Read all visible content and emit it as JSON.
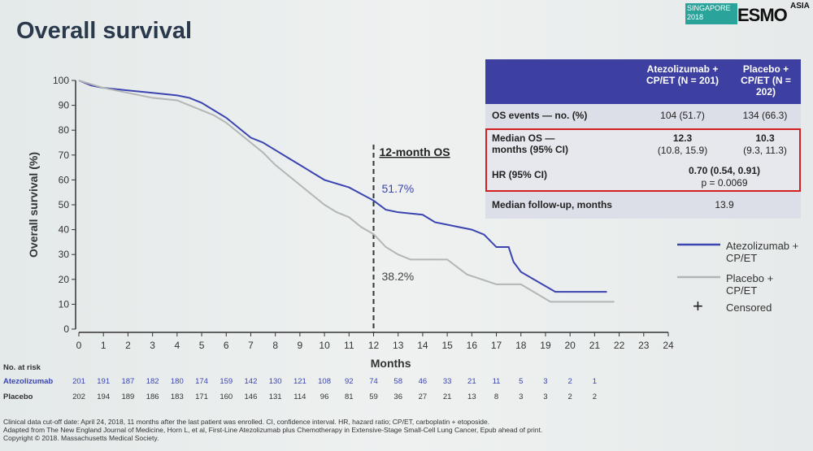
{
  "slide": {
    "title": "Overall survival",
    "logo": {
      "event": "SINGAPORE 2018",
      "brand": "ESMO",
      "region": "ASIA"
    },
    "footnotes": [
      "Clinical data cut-off date: April 24, 2018, 11 months after the last patient was enrolled. CI, confidence interval. HR, hazard ratio; CP/ET, carboplatin + etoposide.",
      "Adapted from The New England Journal of Medicine, Horn L, et al, First-Line Atezolizumab plus Chemotherapy in Extensive-Stage Small-Cell Lung Cancer, Epub ahead of print.",
      "Copyright © 2018. Massachusetts Medical Society."
    ],
    "summary_table": {
      "header": [
        "Atezolizumab + CP/ET (N = 201)",
        "Placebo + CP/ET (N = 202)"
      ],
      "rows": [
        [
          "OS events — no. (%)",
          "104 (51.7)",
          "134 (66.3)"
        ],
        [
          "Median OS — months (95% CI)",
          "12.3",
          "(10.8, 15.9)",
          "10.3",
          "(9.3, 11.3)"
        ],
        [
          "HR (95% CI)",
          "0.70 (0.54, 0.91)",
          "p = 0.0069"
        ],
        [
          "Median follow-up, months",
          "13.9"
        ]
      ]
    }
  },
  "chart_data": {
    "type": "line",
    "y_label": "Overall survival (%)",
    "x_label": "Months",
    "xlim": [
      0,
      24
    ],
    "ylim": [
      0,
      100
    ],
    "xticks": [
      0,
      1,
      2,
      3,
      4,
      5,
      6,
      7,
      8,
      9,
      10,
      11,
      12,
      13,
      14,
      15,
      16,
      17,
      18,
      19,
      20,
      21,
      22,
      23,
      24
    ],
    "yticks": [
      0,
      10,
      20,
      30,
      40,
      50,
      60,
      70,
      80,
      90,
      100
    ],
    "marker_x": 12,
    "marker_label": "12-month OS",
    "censored_label": "Censored",
    "series": [
      {
        "name": "Atezolizumab + CP/ET",
        "color": "#3b44b0",
        "x": [
          0,
          0.5,
          1,
          2,
          3,
          4,
          4.5,
          5,
          5.5,
          6,
          6.5,
          7,
          7.5,
          8,
          8.5,
          9,
          9.5,
          10,
          11,
          12,
          12.5,
          13,
          14,
          14.5,
          15,
          16,
          16.5,
          17,
          17.5,
          17.7,
          18,
          19.4,
          21.5
        ],
        "values": [
          100,
          98,
          97,
          96,
          95,
          94,
          93,
          91,
          88,
          85,
          81,
          77,
          75,
          72,
          69,
          66,
          63,
          60,
          57,
          51.7,
          48,
          47,
          46,
          43,
          42,
          40,
          38,
          33,
          33,
          27,
          23,
          15,
          15
        ],
        "annotation": "51.7%",
        "annotation_value": 51.7
      },
      {
        "name": "Placebo + CP/ET",
        "color": "#b4b6b6",
        "x": [
          0,
          1,
          2,
          3,
          4,
          4.5,
          5,
          5.5,
          6,
          6.5,
          7,
          7.5,
          8,
          8.5,
          9,
          9.5,
          10,
          10.5,
          11,
          11.5,
          12,
          12.5,
          13,
          13.5,
          15,
          15.8,
          17,
          18,
          19.2,
          21.8
        ],
        "values": [
          100,
          97,
          95,
          93,
          92,
          90,
          88,
          86,
          83,
          79,
          75,
          71,
          66,
          62,
          58,
          54,
          50,
          47,
          45,
          41,
          38.2,
          33,
          30,
          28,
          28,
          22,
          18,
          18,
          11,
          11
        ],
        "annotation": "38.2%",
        "annotation_value": 38.2
      }
    ],
    "risk_table": {
      "title": "No. at risk",
      "rows": [
        {
          "name": "Atezolizumab",
          "values": [
            201,
            191,
            187,
            182,
            180,
            174,
            159,
            142,
            130,
            121,
            108,
            92,
            74,
            58,
            46,
            33,
            21,
            11,
            5,
            3,
            2,
            1
          ]
        },
        {
          "name": "Placebo",
          "values": [
            202,
            194,
            189,
            186,
            183,
            171,
            160,
            146,
            131,
            114,
            96,
            81,
            59,
            36,
            27,
            21,
            13,
            8,
            3,
            3,
            2,
            2
          ]
        }
      ]
    }
  }
}
